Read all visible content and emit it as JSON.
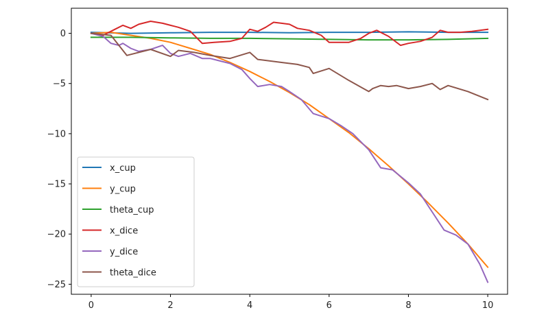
{
  "chart_data": {
    "type": "line",
    "title": "",
    "xlabel": "",
    "ylabel": "",
    "xlim": [
      -0.5,
      10.5
    ],
    "ylim": [
      -26,
      2.5
    ],
    "xticks": [
      0,
      2,
      4,
      6,
      8,
      10
    ],
    "yticks": [
      0,
      -5,
      -10,
      -15,
      -20,
      -25
    ],
    "xtick_labels": [
      "0",
      "2",
      "4",
      "6",
      "8",
      "10"
    ],
    "ytick_labels": [
      "0",
      "−5",
      "−10",
      "−15",
      "−20",
      "−25"
    ],
    "grid": false,
    "legend": "lower-left",
    "series": [
      {
        "name": "x_cup",
        "color": "#1f77b4",
        "x": [
          0,
          1,
          2,
          3,
          4,
          5,
          6,
          7,
          8,
          9,
          10
        ],
        "y": [
          0.1,
          0.0,
          0.05,
          0.1,
          0.1,
          0.05,
          0.1,
          0.1,
          0.15,
          0.1,
          0.1
        ]
      },
      {
        "name": "y_cup",
        "color": "#ff7f0e",
        "x": [
          0,
          0.5,
          1,
          1.5,
          2,
          2.5,
          3,
          3.5,
          4,
          4.5,
          5,
          5.5,
          6,
          6.5,
          7,
          7.5,
          8,
          8.5,
          9,
          9.5,
          10
        ],
        "y": [
          0.0,
          0.1,
          -0.2,
          -0.5,
          -0.9,
          -1.5,
          -2.1,
          -2.9,
          -3.8,
          -4.8,
          -5.9,
          -7.1,
          -8.5,
          -9.9,
          -11.5,
          -13.2,
          -15.0,
          -16.9,
          -18.9,
          -21.0,
          -23.3
        ]
      },
      {
        "name": "theta_cup",
        "color": "#2ca02c",
        "x": [
          0,
          1,
          2,
          3,
          4,
          5,
          6,
          7,
          8,
          9,
          10
        ],
        "y": [
          -0.4,
          -0.4,
          -0.45,
          -0.5,
          -0.5,
          -0.55,
          -0.6,
          -0.65,
          -0.65,
          -0.6,
          -0.5
        ]
      },
      {
        "name": "x_dice",
        "color": "#d62728",
        "x": [
          0,
          0.3,
          0.6,
          0.8,
          1.0,
          1.2,
          1.5,
          1.8,
          2.0,
          2.2,
          2.5,
          2.8,
          3.1,
          3.5,
          3.8,
          4.0,
          4.2,
          4.4,
          4.6,
          4.8,
          5.0,
          5.2,
          5.5,
          5.8,
          6.0,
          6.2,
          6.5,
          6.8,
          7.0,
          7.2,
          7.5,
          7.8,
          8.0,
          8.3,
          8.6,
          8.8,
          9.0,
          9.3,
          9.6,
          10.0
        ],
        "y": [
          0.0,
          -0.2,
          0.4,
          0.8,
          0.5,
          0.9,
          1.2,
          1.0,
          0.8,
          0.6,
          0.2,
          -1.0,
          -0.9,
          -0.8,
          -0.5,
          0.4,
          0.2,
          0.6,
          1.1,
          1.0,
          0.9,
          0.5,
          0.3,
          -0.2,
          -0.9,
          -0.9,
          -0.9,
          -0.5,
          0.0,
          0.3,
          -0.3,
          -1.2,
          -1.0,
          -0.8,
          -0.4,
          0.3,
          0.1,
          0.1,
          0.2,
          0.4
        ]
      },
      {
        "name": "y_dice",
        "color": "#9467bd",
        "x": [
          0,
          0.3,
          0.5,
          0.7,
          0.8,
          1.0,
          1.2,
          1.5,
          1.8,
          2.0,
          2.2,
          2.5,
          2.8,
          3.0,
          3.2,
          3.5,
          3.8,
          4.0,
          4.2,
          4.5,
          4.8,
          5.0,
          5.3,
          5.6,
          6.0,
          6.3,
          6.6,
          7.0,
          7.3,
          7.6,
          8.0,
          8.3,
          8.6,
          8.9,
          9.2,
          9.5,
          9.8,
          10.0
        ],
        "y": [
          0.0,
          -0.3,
          -1.0,
          -1.2,
          -1.0,
          -1.5,
          -1.8,
          -1.6,
          -1.2,
          -2.0,
          -2.3,
          -2.0,
          -2.5,
          -2.5,
          -2.7,
          -3.0,
          -3.6,
          -4.5,
          -5.3,
          -5.1,
          -5.3,
          -5.8,
          -6.6,
          -8.0,
          -8.5,
          -9.2,
          -10.0,
          -11.6,
          -13.4,
          -13.6,
          -14.9,
          -16.0,
          -17.8,
          -19.6,
          -20.1,
          -21.0,
          -23.0,
          -24.8
        ]
      },
      {
        "name": "theta_dice",
        "color": "#8c564b",
        "x": [
          0,
          0.5,
          0.9,
          1.5,
          2.0,
          2.2,
          2.6,
          3.0,
          3.5,
          4.0,
          4.2,
          4.8,
          5.2,
          5.5,
          5.6,
          6.0,
          6.5,
          7.0,
          7.1,
          7.3,
          7.5,
          7.7,
          7.9,
          8.0,
          8.3,
          8.6,
          8.8,
          9.0,
          9.5,
          10.0
        ],
        "y": [
          0.0,
          -0.2,
          -2.2,
          -1.6,
          -2.3,
          -1.7,
          -1.9,
          -2.2,
          -2.5,
          -1.9,
          -2.6,
          -2.9,
          -3.1,
          -3.4,
          -4.0,
          -3.5,
          -4.7,
          -5.8,
          -5.5,
          -5.2,
          -5.3,
          -5.2,
          -5.4,
          -5.5,
          -5.3,
          -5.0,
          -5.6,
          -5.2,
          -5.8,
          -6.6
        ]
      }
    ]
  }
}
